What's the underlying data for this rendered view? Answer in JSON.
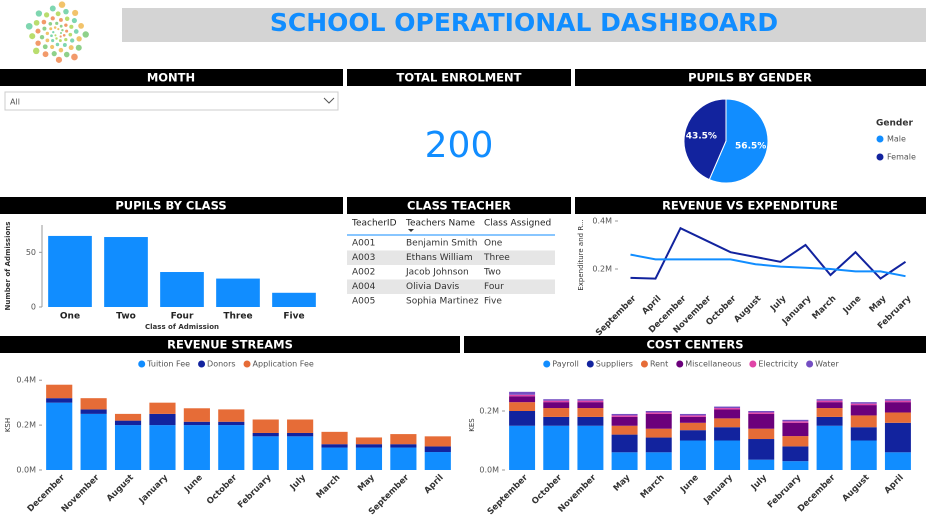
{
  "header": {
    "title": "SCHOOL OPERATIONAL DASHBOARD"
  },
  "month_filter": {
    "title": "MONTH",
    "selected": "All"
  },
  "enrolment": {
    "title": "TOTAL ENROLMENT",
    "value": 200
  },
  "teacher_table": {
    "title": "CLASS TEACHER",
    "columns": [
      "TeacherID",
      "Teachers Name",
      "Class Assigned"
    ],
    "rows": [
      [
        "A001",
        "Benjamin Smith",
        "One"
      ],
      [
        "A003",
        "Ethans William",
        "Three"
      ],
      [
        "A002",
        "Jacob Johnson",
        "Two"
      ],
      [
        "A004",
        "Olivia Davis",
        "Four"
      ],
      [
        "A005",
        "Sophia Martinez",
        "Five"
      ]
    ]
  },
  "chart_data": [
    {
      "type": "pie",
      "title": "PUPILS BY GENDER",
      "legend_title": "Gender",
      "legend": "right",
      "categories": [
        "Male",
        "Female"
      ],
      "values": [
        56.5,
        43.5
      ],
      "value_labels": [
        "56.5%",
        "43.5%"
      ],
      "colors": [
        "#118DFF",
        "#12239E"
      ]
    },
    {
      "type": "bar",
      "title": "PUPILS BY CLASS",
      "categories": [
        "One",
        "Two",
        "Four",
        "Three",
        "Five"
      ],
      "values": [
        65,
        64,
        32,
        26,
        13
      ],
      "color": "#118DFF",
      "ylim": [
        0,
        75
      ],
      "yticks": [
        0,
        50
      ],
      "y_label": "Number of Admissions",
      "x_label": "Class of Admission"
    },
    {
      "type": "line",
      "title": "REVENUE VS EXPENDITURE",
      "categories": [
        "September",
        "April",
        "December",
        "November",
        "October",
        "August",
        "July",
        "January",
        "March",
        "June",
        "May",
        "February"
      ],
      "series": [
        {
          "color": "#12239E",
          "values": [
            163000,
            160000,
            370000,
            320000,
            270000,
            250000,
            230000,
            300000,
            175000,
            270000,
            160000,
            230000
          ]
        },
        {
          "color": "#118DFF",
          "values": [
            260000,
            240000,
            240000,
            240000,
            240000,
            220000,
            210000,
            205000,
            200000,
            190000,
            190000,
            170000
          ]
        }
      ],
      "ylim": [
        100000,
        450000
      ],
      "yticks": [
        {
          "value": 200000,
          "label": "0.2M"
        },
        {
          "value": 400000,
          "label": "0.4M"
        }
      ],
      "y_label": "Expenditure and R..."
    },
    {
      "type": "stacked_bar",
      "title": "REVENUE STREAMS",
      "categories": [
        "December",
        "November",
        "August",
        "January",
        "June",
        "October",
        "February",
        "July",
        "March",
        "May",
        "September",
        "April"
      ],
      "series": [
        {
          "name": "Tuition Fee",
          "color": "#118DFF",
          "values": [
            300000,
            250000,
            200000,
            200000,
            200000,
            200000,
            150000,
            150000,
            100000,
            100000,
            100000,
            80000
          ]
        },
        {
          "name": "Donors",
          "color": "#12239E",
          "values": [
            20000,
            20000,
            20000,
            50000,
            15000,
            15000,
            15000,
            15000,
            15000,
            15000,
            15000,
            25000
          ]
        },
        {
          "name": "Application Fee",
          "color": "#E66C37",
          "values": [
            60000,
            50000,
            30000,
            50000,
            60000,
            55000,
            60000,
            60000,
            55000,
            30000,
            45000,
            45000
          ]
        }
      ],
      "ylim": [
        0,
        450000
      ],
      "yticks": [
        {
          "value": 0,
          "label": "0.0M"
        },
        {
          "value": 200000,
          "label": "0.2M"
        },
        {
          "value": 400000,
          "label": "0.4M"
        }
      ],
      "y_label": "KSH"
    },
    {
      "type": "stacked_bar",
      "title": "COST CENTERS",
      "categories": [
        "September",
        "October",
        "November",
        "May",
        "March",
        "June",
        "January",
        "July",
        "February",
        "December",
        "August",
        "April"
      ],
      "series": [
        {
          "name": "Payroll",
          "color": "#118DFF",
          "values": [
            150000,
            150000,
            150000,
            60000,
            60000,
            100000,
            100000,
            35000,
            30000,
            150000,
            100000,
            60000
          ]
        },
        {
          "name": "Suppliers",
          "color": "#12239E",
          "values": [
            50000,
            30000,
            30000,
            60000,
            50000,
            35000,
            45000,
            70000,
            50000,
            30000,
            45000,
            100000
          ]
        },
        {
          "name": "Rent",
          "color": "#E66C37",
          "values": [
            30000,
            30000,
            30000,
            30000,
            30000,
            25000,
            30000,
            35000,
            35000,
            30000,
            40000,
            35000
          ]
        },
        {
          "name": "Miscellaneous",
          "color": "#6B007B",
          "values": [
            20000,
            20000,
            20000,
            30000,
            50000,
            20000,
            30000,
            50000,
            45000,
            20000,
            35000,
            35000
          ]
        },
        {
          "name": "Electricity",
          "color": "#E044A7",
          "values": [
            5000,
            5000,
            5000,
            5000,
            5000,
            5000,
            5000,
            5000,
            5000,
            5000,
            5000,
            5000
          ]
        },
        {
          "name": "Water",
          "color": "#744EC2",
          "values": [
            10000,
            5000,
            5000,
            5000,
            5000,
            5000,
            5000,
            5000,
            5000,
            5000,
            5000,
            5000
          ]
        }
      ],
      "ylim": [
        0,
        300000
      ],
      "yticks": [
        {
          "value": 0,
          "label": "0.0M"
        },
        {
          "value": 200000,
          "label": "0.2M"
        }
      ],
      "y_label": "KES"
    }
  ]
}
